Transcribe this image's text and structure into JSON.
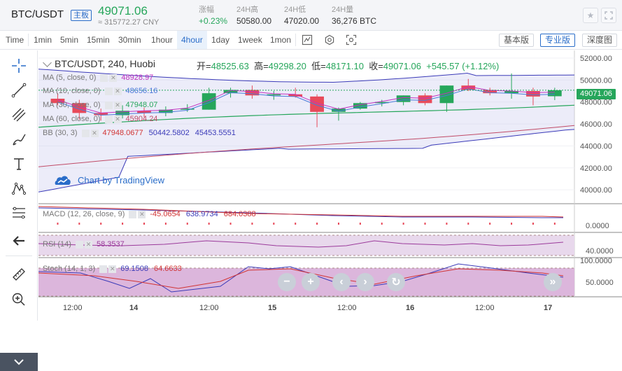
{
  "header": {
    "pair": "BTC/USDT",
    "badge": "主板",
    "price": "49071.06",
    "cny": "≈ 315772.27 CNY",
    "stats": [
      {
        "label": "涨幅",
        "value": "+0.23%"
      },
      {
        "label": "24H高",
        "value": "50580.00"
      },
      {
        "label": "24H低",
        "value": "47020.00"
      },
      {
        "label": "24H量",
        "value": "36,276 BTC"
      }
    ],
    "icons": [
      "star-icon",
      "fullscreen-icon"
    ]
  },
  "toolbar": {
    "timeframes": [
      "Time",
      "1min",
      "5min",
      "15min",
      "30min",
      "1hour",
      "4hour",
      "1day",
      "1week",
      "1mon"
    ],
    "active": "4hour",
    "views": [
      "基本版",
      "专业版",
      "深度图"
    ],
    "active_view": "专业版"
  },
  "chart": {
    "title": "BTC/USDT, 240, Huobi",
    "ohlc": {
      "open_label": "开=",
      "open": "48525.63",
      "high_label": "高=",
      "high": "49298.20",
      "low_label": "低=",
      "low": "48171.10",
      "close_label": "收=",
      "close": "49071.06",
      "change": "+545.57 (+1.12%)"
    },
    "indicators": [
      {
        "name": "MA (5, close, 0)",
        "values": [
          "48928.97"
        ],
        "colors": [
          "#c132c1"
        ]
      },
      {
        "name": "MA (10, close, 0)",
        "values": [
          "48656.16"
        ],
        "colors": [
          "#4a79d9"
        ]
      },
      {
        "name": "MA (30, close, 0)",
        "values": [
          "47948.07"
        ],
        "colors": [
          "#26a65b"
        ]
      },
      {
        "name": "MA (60, close, 0)",
        "values": [
          "45904.24"
        ],
        "colors": [
          "#c04b67"
        ]
      },
      {
        "name": "BB (30, 3)",
        "values": [
          "47948.0677",
          "50442.5802",
          "45453.5551"
        ],
        "colors": [
          "#d13434",
          "#3a3ab8",
          "#3a3ab8"
        ]
      }
    ],
    "last_price": "49071.06",
    "branding": "Chart by TradingView",
    "macd": {
      "name": "MACD (12, 26, close, 9)",
      "values": [
        "-45.0654",
        "638.9734",
        "684.0388"
      ]
    },
    "rsi": {
      "name": "RSI (14)",
      "value": "58.3537"
    },
    "stoch": {
      "name": "Stoch (14, 1, 3)",
      "values": [
        "69.1508",
        "64.6633"
      ]
    }
  },
  "chart_data": {
    "type": "candlestick",
    "title": "BTC/USDT, 240, Huobi",
    "price_axis": {
      "ticks": [
        40000,
        42000,
        44000,
        46000,
        48000,
        50000,
        52000
      ],
      "labels": [
        "40000.00",
        "42000.00",
        "44000.00",
        "46000.00",
        "48000.00",
        "50000.00",
        "52000.00"
      ]
    },
    "time_axis": {
      "labels": [
        "12:00",
        "14",
        "12:00",
        "15",
        "12:00",
        "16",
        "12:00",
        "17"
      ]
    },
    "macd_axis": {
      "labels": [
        "0.0000"
      ]
    },
    "rsi_axis": {
      "labels": [
        "40.0000"
      ]
    },
    "stoch_axis": {
      "labels": [
        "100.0000",
        "50.0000"
      ]
    },
    "candles": [
      {
        "o": 48300,
        "h": 48800,
        "l": 47700,
        "c": 47900
      },
      {
        "o": 47900,
        "h": 48200,
        "l": 46400,
        "c": 47000
      },
      {
        "o": 47000,
        "h": 47400,
        "l": 46300,
        "c": 46800
      },
      {
        "o": 46800,
        "h": 47700,
        "l": 46500,
        "c": 47200
      },
      {
        "o": 47200,
        "h": 47500,
        "l": 46600,
        "c": 47000
      },
      {
        "o": 47000,
        "h": 47600,
        "l": 46700,
        "c": 47300
      },
      {
        "o": 47300,
        "h": 47800,
        "l": 47100,
        "c": 47400
      },
      {
        "o": 47300,
        "h": 49300,
        "l": 47300,
        "c": 48800
      },
      {
        "o": 48800,
        "h": 49300,
        "l": 48400,
        "c": 49100
      },
      {
        "o": 49100,
        "h": 49500,
        "l": 48300,
        "c": 48600
      },
      {
        "o": 48600,
        "h": 49000,
        "l": 48200,
        "c": 48700
      },
      {
        "o": 48700,
        "h": 49300,
        "l": 48400,
        "c": 48500
      },
      {
        "o": 48500,
        "h": 48700,
        "l": 45700,
        "c": 47100
      },
      {
        "o": 47100,
        "h": 47500,
        "l": 46300,
        "c": 47400
      },
      {
        "o": 47400,
        "h": 48000,
        "l": 47300,
        "c": 47900
      },
      {
        "o": 47900,
        "h": 48200,
        "l": 47600,
        "c": 48000
      },
      {
        "o": 48000,
        "h": 48600,
        "l": 47700,
        "c": 48600
      },
      {
        "o": 48600,
        "h": 48800,
        "l": 47700,
        "c": 47900
      },
      {
        "o": 47900,
        "h": 49500,
        "l": 47100,
        "c": 49500
      },
      {
        "o": 49500,
        "h": 50100,
        "l": 49000,
        "c": 49100
      },
      {
        "o": 49100,
        "h": 49300,
        "l": 48600,
        "c": 48800
      },
      {
        "o": 48800,
        "h": 50600,
        "l": 48300,
        "c": 49000
      },
      {
        "o": 49000,
        "h": 49300,
        "l": 47700,
        "c": 48500
      },
      {
        "o": 48525.63,
        "h": 49298.2,
        "l": 48171.1,
        "c": 49071.06
      }
    ],
    "colors": {
      "up": "#26a65b",
      "down": "#e84a5a",
      "ma5": "#c132c1",
      "ma10": "#4a79d9",
      "ma30": "#26a65b",
      "ma60": "#c04b67",
      "bb": "#3a3ab8",
      "bb_fill": "#c8c8ee"
    }
  }
}
